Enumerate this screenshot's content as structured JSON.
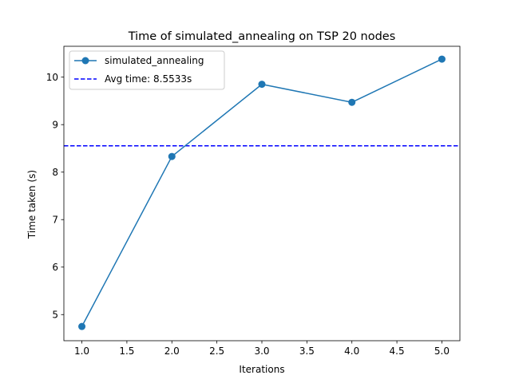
{
  "chart_data": {
    "type": "line",
    "title": "Time of simulated_annealing on TSP 20 nodes",
    "xlabel": "Iterations",
    "ylabel": "Time taken (s)",
    "xlim": [
      0.8,
      5.2
    ],
    "ylim": [
      4.45,
      10.65
    ],
    "x_ticks": [
      1.0,
      1.5,
      2.0,
      2.5,
      3.0,
      3.5,
      4.0,
      4.5,
      5.0
    ],
    "x_tick_labels": [
      "1.0",
      "1.5",
      "2.0",
      "2.5",
      "3.0",
      "3.5",
      "4.0",
      "4.5",
      "5.0"
    ],
    "y_ticks": [
      5,
      6,
      7,
      8,
      9,
      10
    ],
    "y_tick_labels": [
      "5",
      "6",
      "7",
      "8",
      "9",
      "10"
    ],
    "grid": false,
    "legend_position": "top-left",
    "series": [
      {
        "name": "simulated_annealing",
        "x": [
          1,
          2,
          3,
          4,
          5
        ],
        "y": [
          4.75,
          8.33,
          9.85,
          9.47,
          10.38
        ],
        "color": "#1f77b4",
        "marker": "circle",
        "line_style": "solid"
      }
    ],
    "reference_lines": [
      {
        "name": "Avg time: 8.5533s",
        "y": 8.5533,
        "color": "#0000ff",
        "line_style": "dashed"
      }
    ]
  }
}
